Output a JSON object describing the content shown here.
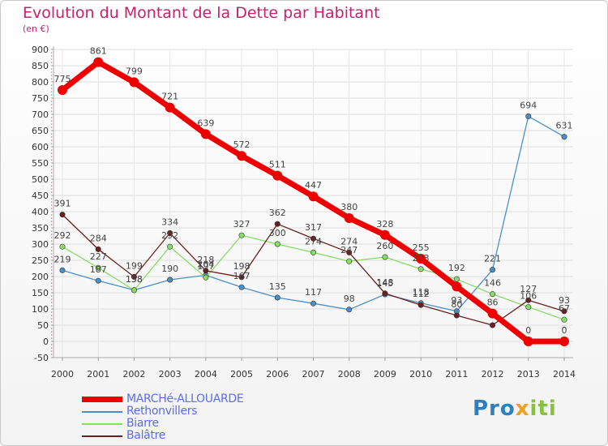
{
  "title": "Evolution du Montant de la Dette par Habitant",
  "subtitle": "(en €)",
  "brand": {
    "logo_text": "Proxiti"
  },
  "chart_data": {
    "type": "line",
    "title": "Evolution du Montant de la Dette par Habitant",
    "ylabel": "(en €)",
    "x": [
      "2000",
      "2001",
      "2002",
      "2003",
      "2004",
      "2005",
      "2006",
      "2007",
      "2008",
      "2009",
      "2010",
      "2011",
      "2012",
      "2013",
      "2014"
    ],
    "ylim": [
      -50,
      900
    ],
    "yticks": [
      -50,
      0,
      50,
      100,
      150,
      200,
      250,
      300,
      350,
      400,
      450,
      500,
      550,
      600,
      650,
      700,
      750,
      800,
      850,
      900
    ],
    "grid": true,
    "legend_position": "bottom-left",
    "series": [
      {
        "name": "MARCHé-ALLOUARDE",
        "color": "#ee0000",
        "emphasis": true,
        "values": [
          775,
          861,
          799,
          721,
          639,
          572,
          511,
          447,
          380,
          328,
          255,
          169,
          86,
          0,
          0
        ],
        "labels": [
          "775",
          "861",
          "799",
          "721",
          "639",
          "572",
          "511",
          "447",
          "380",
          "328",
          "255",
          "",
          "86",
          "0",
          "0"
        ]
      },
      {
        "name": "Rethonvillers",
        "color": "#4a90c8",
        "values": [
          219,
          187,
          158,
          190,
          204,
          167,
          135,
          117,
          98,
          145,
          118,
          93,
          221,
          694,
          631
        ],
        "labels": [
          "219",
          "187",
          "158",
          "190",
          "204",
          "167",
          "135",
          "117",
          "98",
          "145",
          "118",
          "93",
          "221",
          "694",
          "631"
        ]
      },
      {
        "name": "Biarre",
        "color": "#88dd66",
        "values": [
          292,
          227,
          158,
          292,
          197,
          327,
          300,
          274,
          247,
          260,
          223,
          192,
          146,
          106,
          67
        ],
        "labels": [
          "292",
          "227",
          "158",
          "292",
          "197",
          "327",
          "300",
          "274",
          "247",
          "260",
          "223",
          "192",
          "146",
          "106",
          "67"
        ]
      },
      {
        "name": "Balâtre",
        "color": "#6b1f1f",
        "values": [
          391,
          284,
          199,
          334,
          218,
          198,
          362,
          317,
          274,
          148,
          112,
          80,
          50,
          127,
          93
        ],
        "labels": [
          "391",
          "284",
          "199",
          "334",
          "218",
          "198",
          "362",
          "317",
          "274",
          "148",
          "112",
          "80",
          "",
          "127",
          "93"
        ]
      }
    ]
  }
}
